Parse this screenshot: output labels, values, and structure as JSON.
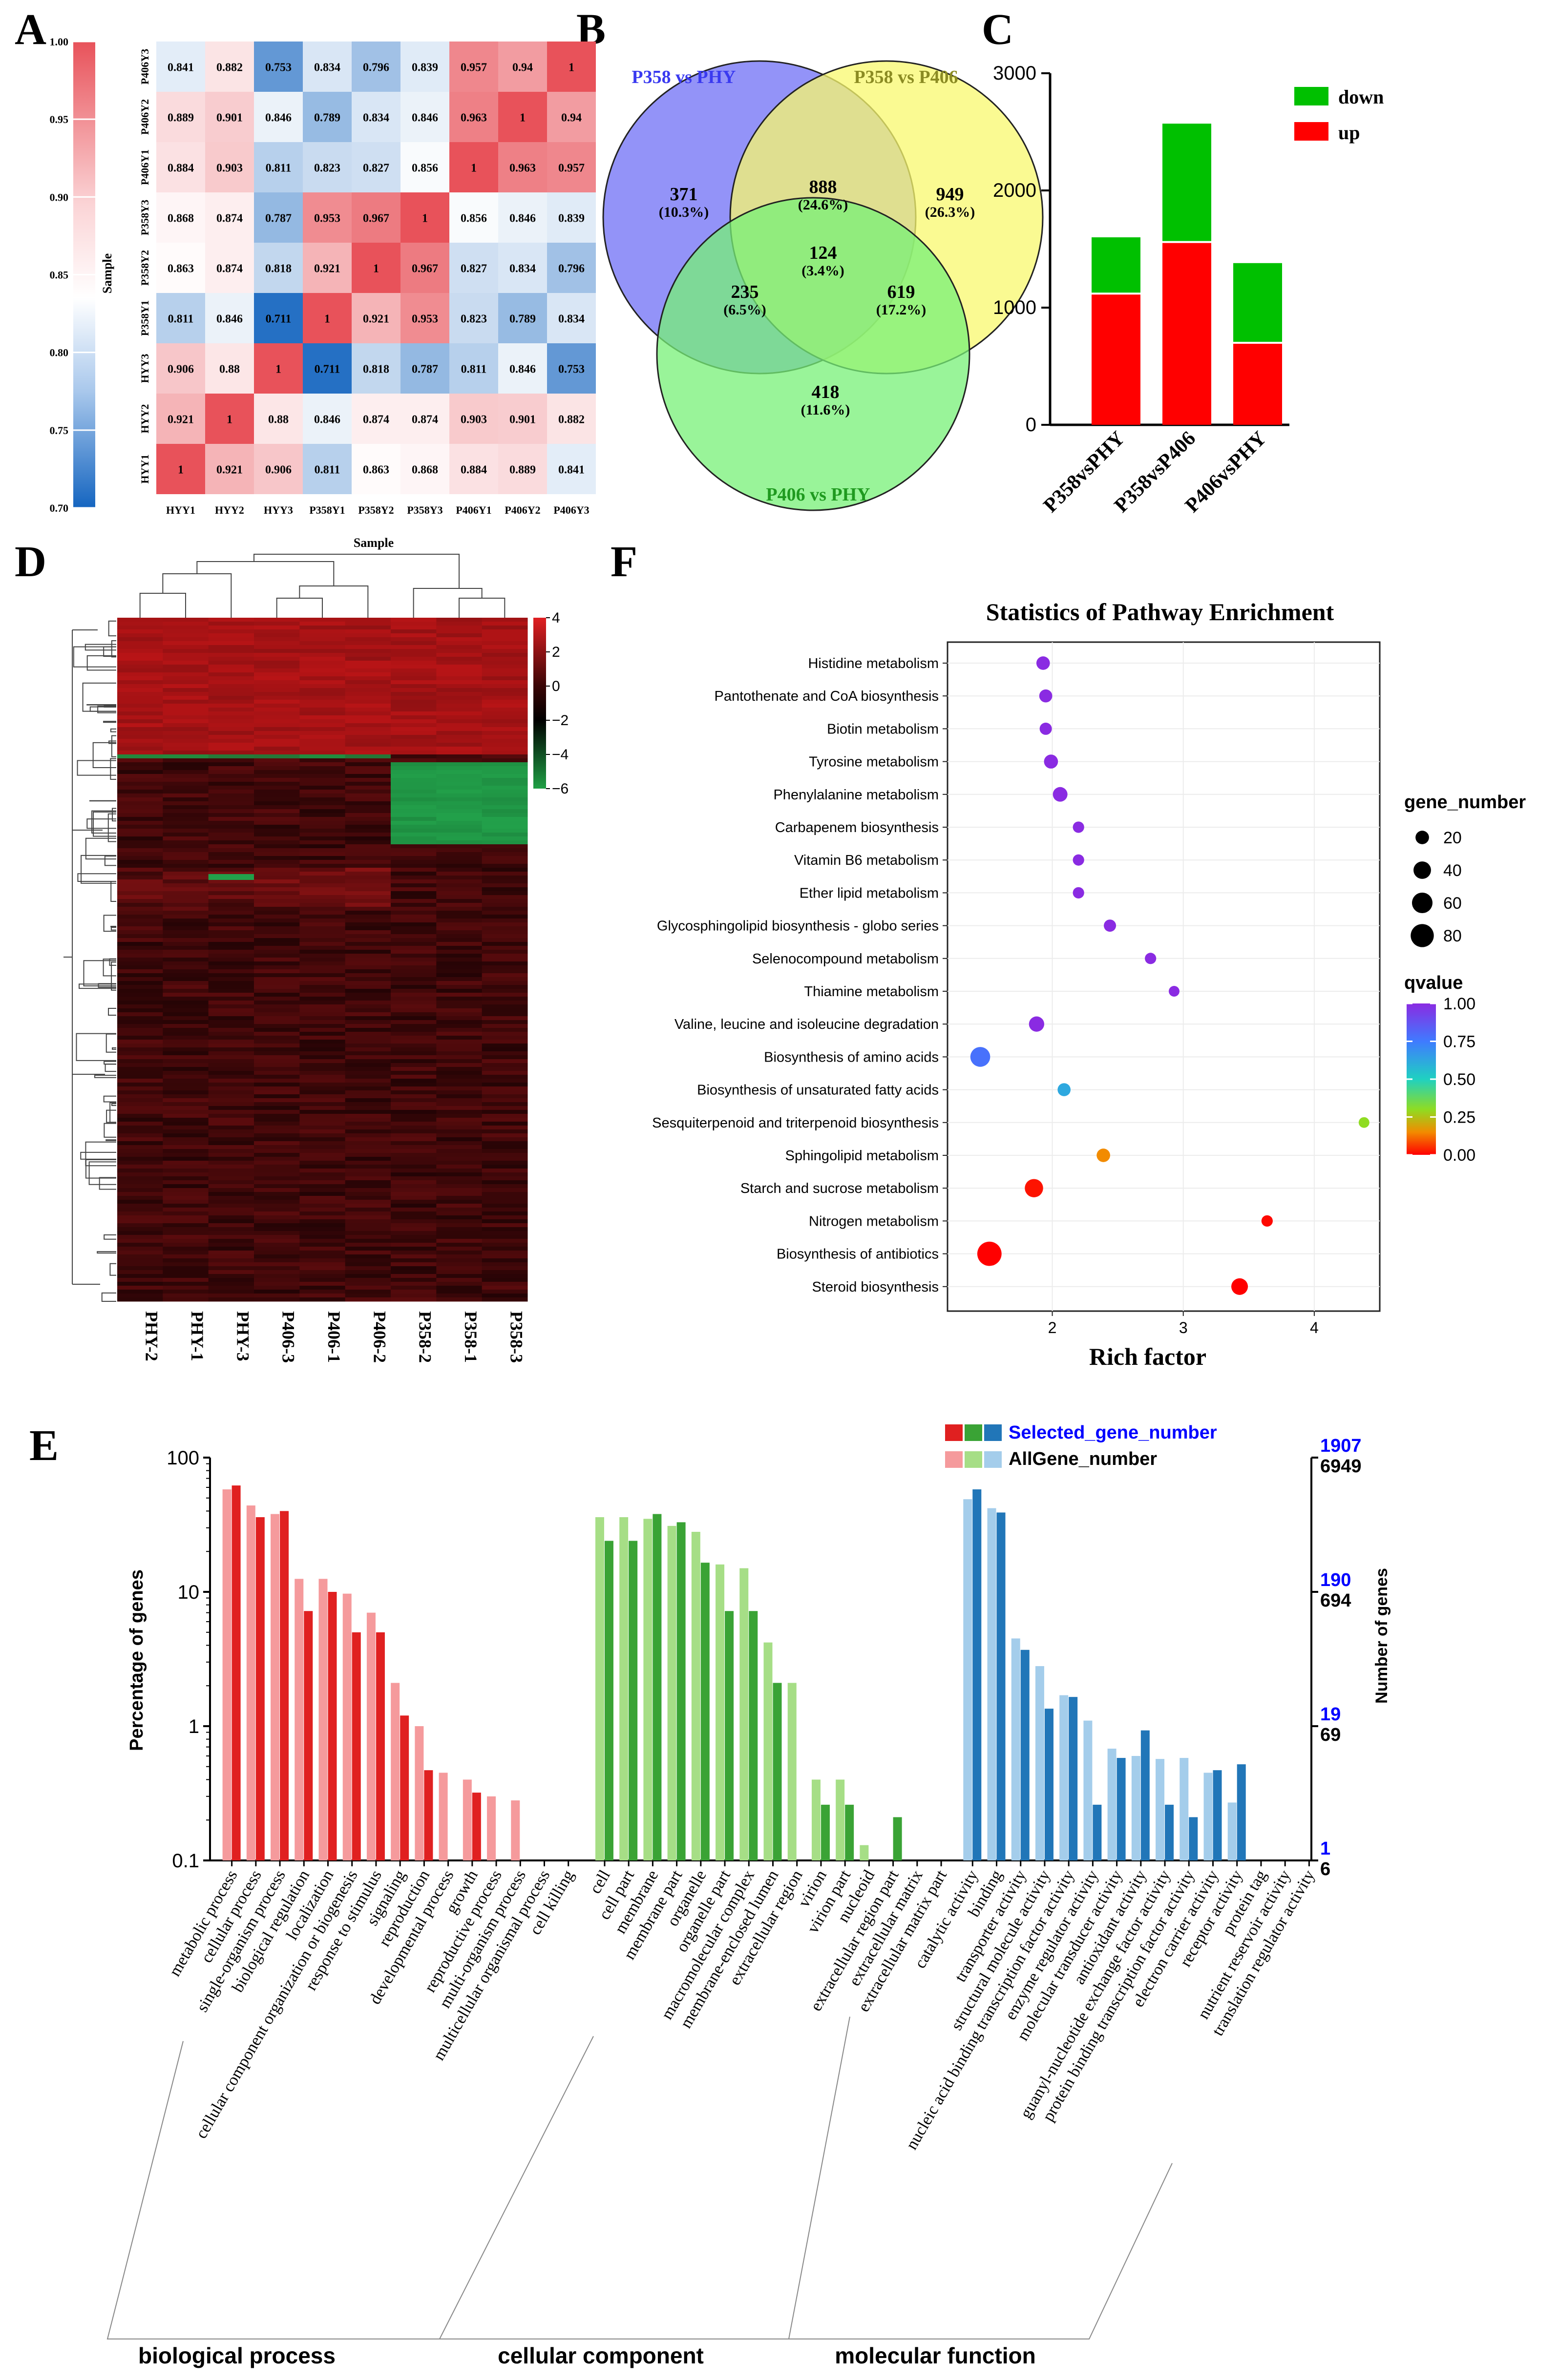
{
  "panels": {
    "A": "A",
    "B": "B",
    "C": "C",
    "D": "D",
    "E": "E",
    "F": "F"
  },
  "chart_data": [
    {
      "panel": "A",
      "type": "heatmap",
      "xlabel": "Sample",
      "ylabel": "Sample",
      "x_categories": [
        "HYY1",
        "HYY2",
        "HYY3",
        "P358Y1",
        "P358Y2",
        "P358Y3",
        "P406Y1",
        "P406Y2",
        "P406Y3"
      ],
      "y_categories": [
        "P406Y3",
        "P406Y2",
        "P406Y1",
        "P358Y3",
        "P358Y2",
        "P358Y1",
        "HYY3",
        "HYY2",
        "HYY1"
      ],
      "colorbar": {
        "ticks": [
          "1.00",
          "0.95",
          "0.90",
          "0.85",
          "0.80",
          "0.75",
          "0.70"
        ],
        "range": [
          0.7,
          1.0
        ],
        "low_color": "#1565c0",
        "mid_color": "#ffffff",
        "high_color": "#e8525a"
      },
      "values": [
        [
          "0.841",
          "0.882",
          "0.753",
          "0.834",
          "0.796",
          "0.839",
          "0.957",
          "0.94",
          "1"
        ],
        [
          "0.889",
          "0.901",
          "0.846",
          "0.789",
          "0.834",
          "0.846",
          "0.963",
          "1",
          "0.94"
        ],
        [
          "0.884",
          "0.903",
          "0.811",
          "0.823",
          "0.827",
          "0.856",
          "1",
          "0.963",
          "0.957"
        ],
        [
          "0.868",
          "0.874",
          "0.787",
          "0.953",
          "0.967",
          "1",
          "0.856",
          "0.846",
          "0.839"
        ],
        [
          "0.863",
          "0.874",
          "0.818",
          "0.921",
          "1",
          "0.967",
          "0.827",
          "0.834",
          "0.796"
        ],
        [
          "0.811",
          "0.846",
          "0.711",
          "1",
          "0.921",
          "0.953",
          "0.823",
          "0.789",
          "0.834"
        ],
        [
          "0.906",
          "0.88",
          "1",
          "0.711",
          "0.818",
          "0.787",
          "0.811",
          "0.846",
          "0.753"
        ],
        [
          "0.921",
          "1",
          "0.88",
          "0.846",
          "0.874",
          "0.874",
          "0.903",
          "0.901",
          "0.882"
        ],
        [
          "1",
          "0.921",
          "0.906",
          "0.811",
          "0.863",
          "0.868",
          "0.884",
          "0.889",
          "0.841"
        ]
      ]
    },
    {
      "panel": "B",
      "type": "venn",
      "sets": [
        {
          "name": "P358 vs PHY",
          "color": "#3a3af0",
          "fill": "#6f6ff5"
        },
        {
          "name": "P358 vs P406",
          "color": "#8b8b23",
          "fill": "#f8f86e"
        },
        {
          "name": "P406 vs PHY",
          "color": "#1f9a1f",
          "fill": "#77f077"
        }
      ],
      "regions": [
        {
          "count": "371",
          "pct": "(10.3%)"
        },
        {
          "count": "888",
          "pct": "(24.6%)"
        },
        {
          "count": "949",
          "pct": "(26.3%)"
        },
        {
          "count": "124",
          "pct": "(3.4%)"
        },
        {
          "count": "235",
          "pct": "(6.5%)"
        },
        {
          "count": "619",
          "pct": "(17.2%)"
        },
        {
          "count": "418",
          "pct": "(11.6%)"
        }
      ]
    },
    {
      "panel": "C",
      "type": "bar",
      "stacked": true,
      "categories": [
        "P358vsPHY",
        "P358vsP406",
        "P406vsPHY"
      ],
      "series": [
        {
          "name": "up",
          "color": "#ff0000",
          "values": [
            1120,
            1560,
            700
          ]
        },
        {
          "name": "down",
          "color": "#00c000",
          "values": [
            480,
            1010,
            680
          ]
        }
      ],
      "yticks": [
        "0",
        "1000",
        "2000",
        "3000"
      ],
      "ylim": [
        0,
        3000
      ],
      "legend": "top-right"
    },
    {
      "panel": "D",
      "type": "heatmap",
      "columns": [
        "PHY-2",
        "PHY-1",
        "PHY-3",
        "P406-3",
        "P406-1",
        "P406-2",
        "P358-2",
        "P358-1",
        "P358-3"
      ],
      "colorbar": {
        "ticks": [
          "4",
          "2",
          "0",
          "−2",
          "−4",
          "−6"
        ],
        "range": [
          -6,
          4
        ],
        "low_color": "#1fa045",
        "mid_color": "#000000",
        "high_color": "#d0181a"
      }
    },
    {
      "panel": "F",
      "type": "scatter",
      "title": "Statistics of Pathway Enrichment",
      "xlabel": "Rich factor",
      "xticks": [
        "2",
        "3",
        "4"
      ],
      "xlim": [
        1.2,
        4.5
      ],
      "categories": [
        "Histidine metabolism",
        "Pantothenate and CoA biosynthesis",
        "Biotin metabolism",
        "Tyrosine metabolism",
        "Phenylalanine metabolism",
        "Carbapenem biosynthesis",
        "Vitamin B6 metabolism",
        "Ether lipid metabolism",
        "Glycosphingolipid biosynthesis - globo series",
        "Selenocompound metabolism",
        "Thiamine metabolism",
        "Valine, leucine and isoleucine degradation",
        "Biosynthesis of amino acids",
        "Biosynthesis of unsaturated fatty acids",
        "Sesquiterpenoid and triterpenoid biosynthesis",
        "Sphingolipid metabolism",
        "Starch and sucrose metabolism",
        "Nitrogen metabolism",
        "Biosynthesis of antibiotics",
        "Steroid biosynthesis"
      ],
      "points": [
        {
          "x": 1.93,
          "size": 20,
          "q": 1.0
        },
        {
          "x": 1.95,
          "size": 18,
          "q": 1.0
        },
        {
          "x": 1.95,
          "size": 15,
          "q": 1.0
        },
        {
          "x": 1.99,
          "size": 22,
          "q": 1.0
        },
        {
          "x": 2.06,
          "size": 25,
          "q": 1.0
        },
        {
          "x": 2.2,
          "size": 12,
          "q": 1.0
        },
        {
          "x": 2.2,
          "size": 12,
          "q": 1.0
        },
        {
          "x": 2.2,
          "size": 12,
          "q": 1.0
        },
        {
          "x": 2.44,
          "size": 15,
          "q": 1.0
        },
        {
          "x": 2.75,
          "size": 12,
          "q": 1.0
        },
        {
          "x": 2.93,
          "size": 10,
          "q": 1.0
        },
        {
          "x": 1.88,
          "size": 28,
          "q": 1.0
        },
        {
          "x": 1.45,
          "size": 55,
          "q": 0.78
        },
        {
          "x": 2.09,
          "size": 18,
          "q": 0.62
        },
        {
          "x": 4.38,
          "size": 10,
          "q": 0.3
        },
        {
          "x": 2.39,
          "size": 20,
          "q": 0.15
        },
        {
          "x": 1.86,
          "size": 45,
          "q": 0.02
        },
        {
          "x": 3.64,
          "size": 12,
          "q": 0.01
        },
        {
          "x": 1.52,
          "size": 90,
          "q": 0.0
        },
        {
          "x": 3.43,
          "size": 35,
          "q": 0.0
        }
      ],
      "size_legend": {
        "title": "gene_number",
        "values": [
          "20",
          "40",
          "60",
          "80"
        ]
      },
      "color_legend": {
        "title": "qvalue",
        "ticks": [
          "1.00",
          "0.75",
          "0.50",
          "0.25",
          "0.00"
        ]
      }
    },
    {
      "panel": "E",
      "type": "bar",
      "ylabel": "Percentage of genes",
      "y2label": "Number of genes",
      "yscale": "log",
      "yticks": [
        "100",
        "10",
        "1",
        "0.1"
      ],
      "ylim": [
        0.1,
        100
      ],
      "y2ticks_selected": [
        "1907",
        "190",
        "19",
        "1"
      ],
      "y2ticks_all": [
        "6949",
        "694",
        "69",
        "6"
      ],
      "legend": [
        {
          "name": "Selected_gene_number",
          "color": "#0000ff"
        },
        {
          "name": "AllGene_number",
          "color": "#000000"
        }
      ],
      "groups": [
        "biological process",
        "cellular  component",
        "molecular   function"
      ],
      "categories": [
        {
          "name": "metabolic process",
          "group": 0,
          "all": 58,
          "sel": 62
        },
        {
          "name": "cellular process",
          "group": 0,
          "all": 44,
          "sel": 36
        },
        {
          "name": "single-organism process",
          "group": 0,
          "all": 38,
          "sel": 40
        },
        {
          "name": "biological regulation",
          "group": 0,
          "all": 12.5,
          "sel": 7.2
        },
        {
          "name": "localization",
          "group": 0,
          "all": 12.5,
          "sel": 10
        },
        {
          "name": "cellular component organization or biogenesis",
          "group": 0,
          "all": 9.7,
          "sel": 5
        },
        {
          "name": "response to stimulus",
          "group": 0,
          "all": 7,
          "sel": 5
        },
        {
          "name": "signaling",
          "group": 0,
          "all": 2.1,
          "sel": 1.2
        },
        {
          "name": "reproduction",
          "group": 0,
          "all": 1.0,
          "sel": 0.47
        },
        {
          "name": "developmental process",
          "group": 0,
          "all": 0.45,
          "sel": null
        },
        {
          "name": "growth",
          "group": 0,
          "all": 0.4,
          "sel": 0.32
        },
        {
          "name": "reproductive process",
          "group": 0,
          "all": 0.3,
          "sel": null
        },
        {
          "name": "multi-organism process",
          "group": 0,
          "all": 0.28,
          "sel": null
        },
        {
          "name": "multicellular organismal process",
          "group": 0,
          "all": null,
          "sel": null
        },
        {
          "name": "cell killing",
          "group": 0,
          "all": null,
          "sel": null
        },
        {
          "name": "cell",
          "group": 1,
          "all": 36,
          "sel": 24
        },
        {
          "name": "cell part",
          "group": 1,
          "all": 36,
          "sel": 24
        },
        {
          "name": "membrane",
          "group": 1,
          "all": 35,
          "sel": 38
        },
        {
          "name": "membrane part",
          "group": 1,
          "all": 31,
          "sel": 33
        },
        {
          "name": "organelle",
          "group": 1,
          "all": 28,
          "sel": 16.5
        },
        {
          "name": "organelle part",
          "group": 1,
          "all": 16,
          "sel": 7.2
        },
        {
          "name": "macromolecular complex",
          "group": 1,
          "all": 15,
          "sel": 7.2
        },
        {
          "name": "membrane-enclosed lumen",
          "group": 1,
          "all": 4.2,
          "sel": 2.1
        },
        {
          "name": "extracellular region",
          "group": 1,
          "all": 2.1,
          "sel": null
        },
        {
          "name": "virion",
          "group": 1,
          "all": 0.4,
          "sel": 0.26
        },
        {
          "name": "virion part",
          "group": 1,
          "all": 0.4,
          "sel": 0.26
        },
        {
          "name": "nucleoid",
          "group": 1,
          "all": 0.13,
          "sel": null
        },
        {
          "name": "extracellular region part",
          "group": 1,
          "all": null,
          "sel": 0.21
        },
        {
          "name": "extracellular matrix",
          "group": 1,
          "all": null,
          "sel": null
        },
        {
          "name": "extracellular matrix part",
          "group": 1,
          "all": null,
          "sel": null
        },
        {
          "name": "catalytic activity",
          "group": 2,
          "all": 49,
          "sel": 58
        },
        {
          "name": "binding",
          "group": 2,
          "all": 42,
          "sel": 39
        },
        {
          "name": "transporter activity",
          "group": 2,
          "all": 4.5,
          "sel": 3.7
        },
        {
          "name": "structural molecule activity",
          "group": 2,
          "all": 2.8,
          "sel": 1.35
        },
        {
          "name": "nucleic acid binding transcription factor activity",
          "group": 2,
          "all": 1.7,
          "sel": 1.65
        },
        {
          "name": "enzyme regulator activity",
          "group": 2,
          "all": 1.1,
          "sel": 0.26
        },
        {
          "name": "molecular transducer activity",
          "group": 2,
          "all": 0.68,
          "sel": 0.58
        },
        {
          "name": "antioxidant activity",
          "group": 2,
          "all": 0.6,
          "sel": 0.93
        },
        {
          "name": "guanyl-nucleotide exchange factor activity",
          "group": 2,
          "all": 0.57,
          "sel": 0.26
        },
        {
          "name": "protein binding transcription factor activity",
          "group": 2,
          "all": 0.58,
          "sel": 0.21
        },
        {
          "name": "electron carrier activity",
          "group": 2,
          "all": 0.45,
          "sel": 0.47
        },
        {
          "name": "receptor activity",
          "group": 2,
          "all": 0.27,
          "sel": 0.52
        },
        {
          "name": "protein tag",
          "group": 2,
          "all": null,
          "sel": null
        },
        {
          "name": "nutrient reservoir activity",
          "group": 2,
          "all": null,
          "sel": null
        },
        {
          "name": "translation regulator activity",
          "group": 2,
          "all": 0.1,
          "sel": 0.1
        }
      ]
    }
  ]
}
